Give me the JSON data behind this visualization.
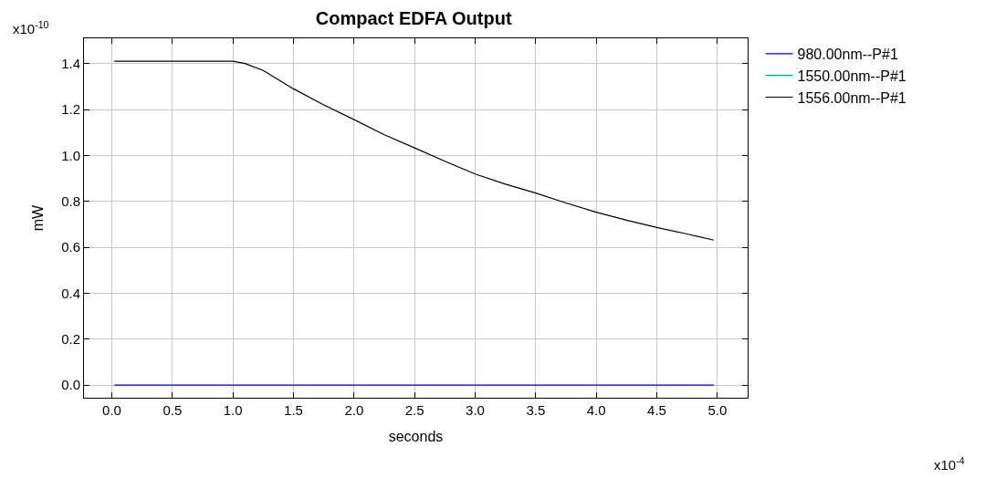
{
  "chart_data": {
    "type": "line",
    "title": "Compact EDFA Output",
    "xlabel": "seconds",
    "ylabel": "mW",
    "annotations": [
      "x10$^{-10}$",
      "x10$^{-4}$"
    ],
    "xlim": [
      -0.23,
      5.25
    ],
    "xticks": [
      {
        "value": 0,
        "label": "0.0"
      },
      0.5,
      {
        "value": 1,
        "label": "1.0"
      },
      1.5,
      {
        "value": 2,
        "label": "2.0"
      },
      2.5,
      {
        "value": 3,
        "label": "3.0"
      },
      3.5,
      {
        "value": 4,
        "label": "4.0"
      },
      4.5,
      {
        "value": 5,
        "label": "5.0"
      }
    ],
    "ylim": [
      -0.055,
      1.51
    ],
    "yticks": [
      {
        "value": 0,
        "label": "0.0"
      },
      0.2,
      0.4,
      0.6,
      0.8,
      {
        "value": 1,
        "label": "1.0"
      },
      1.2,
      1.4
    ],
    "grid": true,
    "legend": "top right",
    "marker": "none",
    "line_style": "solid",
    "series": [
      {
        "name": "980.00nm--P#1",
        "color": "#0000ff",
        "x": [
          0.02,
          4.97
        ],
        "values": [
          0,
          0
        ]
      },
      {
        "name": "1550.00nm--P#1",
        "color": "#00a8a8",
        "values": [
          null
        ]
      },
      {
        "name": "1556.00nm--P#1",
        "color": "#000000",
        "x": [
          0.02,
          1.0,
          1.1,
          1.25,
          1.5,
          1.75,
          2.0,
          2.25,
          2.5,
          2.75,
          3.0,
          3.25,
          3.5,
          3.75,
          4.0,
          4.25,
          4.5,
          4.75,
          4.97
        ],
        "values": [
          1.41,
          1.41,
          1.4,
          1.37,
          1.29,
          1.22,
          1.156,
          1.09,
          1.033,
          0.975,
          0.919,
          0.875,
          0.836,
          0.793,
          0.753,
          0.718,
          0.686,
          0.658,
          0.631
        ]
      }
    ]
  }
}
